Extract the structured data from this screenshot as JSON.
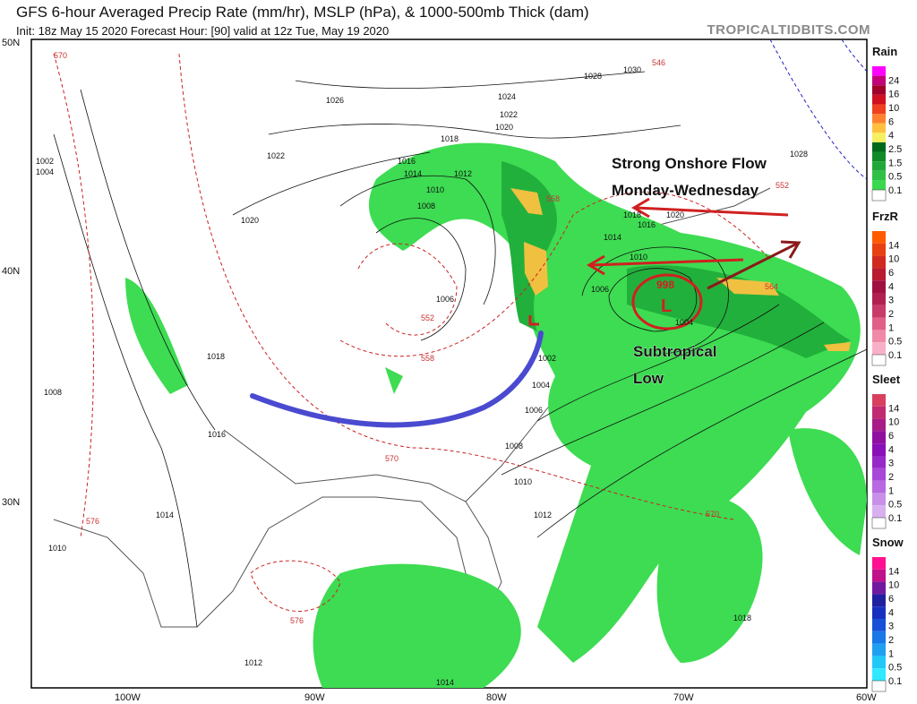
{
  "header": {
    "title": "GFS 6-hour Averaged Precip Rate (mm/hr), MSLP (hPa), & 1000-500mb Thick (dam)",
    "subtitle": "Init: 18z May 15 2020   Forecast Hour: [90]   valid at 12z Tue, May 19 2020",
    "brand": "TROPICALTIDBITS.COM"
  },
  "axes": {
    "lat": [
      "50N",
      "40N",
      "30N"
    ],
    "lon": [
      "100W",
      "90W",
      "80W",
      "70W",
      "60W"
    ]
  },
  "annotations": {
    "line1": "Strong Onshore Flow",
    "line2": "Monday-Wednesday",
    "low1": "Subtropical",
    "low2": "Low",
    "low_pressure": "998",
    "low_letter": "L"
  },
  "isobars": [
    "1026",
    "1024",
    "1022",
    "1020",
    "1018",
    "1030",
    "1028",
    "1028",
    "1022",
    "1002",
    "1004",
    "1016",
    "1014",
    "1012",
    "1010",
    "1008",
    "1020",
    "1018",
    "1020",
    "1016",
    "1014",
    "1010",
    "1006",
    "1006",
    "1004",
    "1002",
    "1004",
    "1006",
    "1008",
    "1010",
    "1012",
    "1018",
    "1008",
    "1016",
    "1014",
    "1010",
    "1012",
    "1014",
    "1018"
  ],
  "thickness": [
    "570",
    "546",
    "558",
    "552",
    "552",
    "558",
    "570",
    "576",
    "570",
    "576",
    "564"
  ],
  "legend": {
    "rain": {
      "title": "Rain",
      "values": [
        "24",
        "16",
        "10",
        "6",
        "4",
        "2.5",
        "1.5",
        "0.5",
        "0.1"
      ],
      "colors": [
        "#ff00ff",
        "#c2007a",
        "#a0002a",
        "#d01020",
        "#f04020",
        "#ff8030",
        "#ffc040",
        "#f5f060",
        "#006a1a",
        "#118a28",
        "#20a838",
        "#30c048",
        "#3ad84e"
      ]
    },
    "frzr": {
      "title": "FrzR",
      "values": [
        "14",
        "10",
        "6",
        "4",
        "3",
        "2",
        "1",
        "0.5",
        "0.1"
      ],
      "colors": [
        "#ff5a00",
        "#e84010",
        "#d02a20",
        "#b81a30",
        "#a01040",
        "#b02050",
        "#c83a68",
        "#e06088",
        "#f08aa8",
        "#f8b0c8"
      ]
    },
    "sleet": {
      "title": "Sleet",
      "values": [
        "14",
        "10",
        "6",
        "4",
        "3",
        "2",
        "1",
        "0.5",
        "0.1"
      ],
      "colors": [
        "#d84060",
        "#c02a70",
        "#a81c88",
        "#9010a0",
        "#8a10b8",
        "#9828c8",
        "#a848d8",
        "#b868e0",
        "#c890e8",
        "#d8b0f0"
      ]
    },
    "snow": {
      "title": "Snow",
      "values": [
        "14",
        "10",
        "6",
        "4",
        "3",
        "2",
        "1",
        "0.5",
        "0.1"
      ],
      "colors": [
        "#ff1090",
        "#c0108a",
        "#701aa0",
        "#2020a0",
        "#1830c0",
        "#1850d8",
        "#1878e8",
        "#20a0f0",
        "#20c8f8",
        "#30e8ff"
      ]
    }
  },
  "colors": {
    "precip_light": "#3ddc52",
    "precip_mid": "#22b03c",
    "precip_heavy": "#f0c040",
    "front": "#4a4ad0",
    "arrow": "#d02020",
    "thickness": "#cc2222"
  }
}
